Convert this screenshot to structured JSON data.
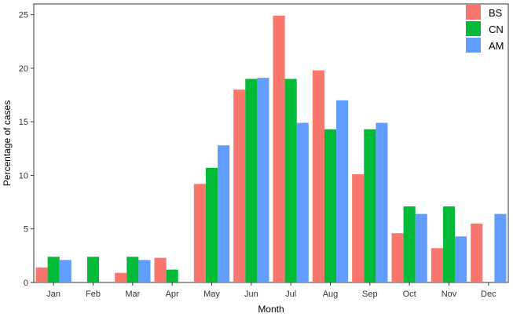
{
  "chart_data": {
    "type": "bar",
    "xlabel": "Month",
    "ylabel": "Percentage of cases",
    "ylim": [
      0,
      26
    ],
    "yticks": [
      0,
      5,
      10,
      15,
      20,
      25
    ],
    "grid": false,
    "legend_position": "top-right",
    "categories": [
      "Jan",
      "Feb",
      "Mar",
      "Apr",
      "May",
      "Jun",
      "Jul",
      "Aug",
      "Sep",
      "Oct",
      "Nov",
      "Dec"
    ],
    "series": [
      {
        "name": "BS",
        "color": "#F8766D",
        "values": [
          1.4,
          0,
          0.9,
          2.3,
          9.2,
          18.0,
          24.9,
          19.8,
          10.1,
          4.6,
          3.2,
          5.5
        ]
      },
      {
        "name": "CN",
        "color": "#00BA38",
        "values": [
          2.4,
          2.4,
          2.4,
          1.2,
          10.7,
          19.0,
          19.0,
          14.3,
          14.3,
          7.1,
          7.1,
          0
        ]
      },
      {
        "name": "AM",
        "color": "#619CFF",
        "values": [
          2.1,
          0,
          2.1,
          0,
          12.8,
          19.1,
          14.9,
          17.0,
          14.9,
          6.4,
          4.3,
          6.4
        ]
      }
    ]
  }
}
